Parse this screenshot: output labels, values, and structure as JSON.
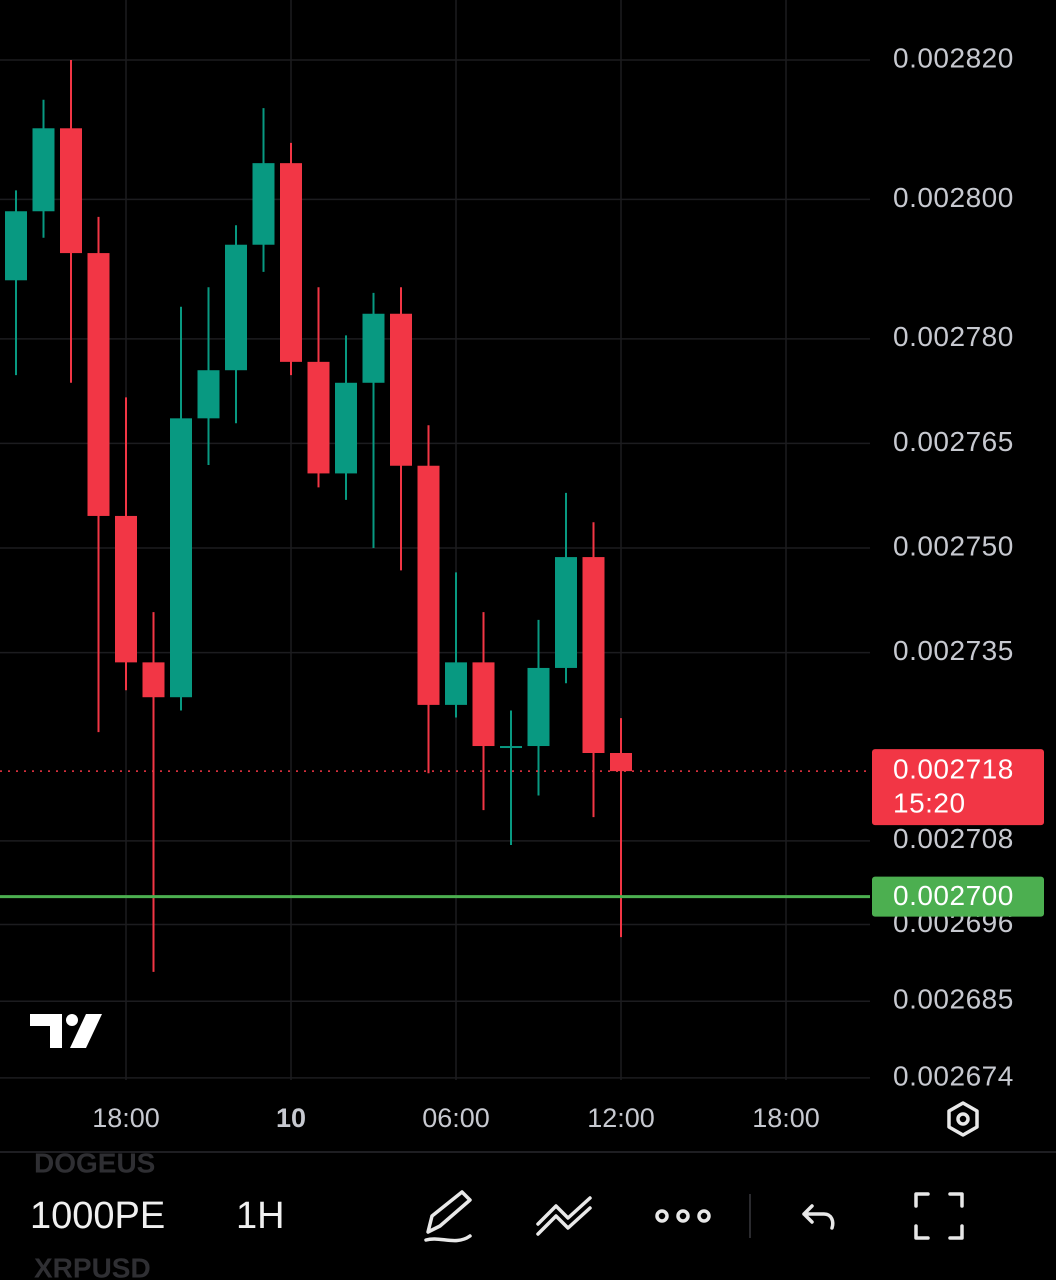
{
  "chart_data": {
    "type": "candlestick",
    "categories": [
      null,
      null,
      null,
      null,
      "18:00",
      null,
      null,
      null,
      null,
      null,
      "10",
      null,
      null,
      null,
      null,
      null,
      "06:00",
      null,
      null,
      null,
      null,
      null,
      "12:00",
      null,
      null,
      null,
      null,
      null,
      "18:00",
      null,
      null,
      null
    ],
    "open": [
      0.0027884,
      0.0027983,
      0.0028102,
      0.0027923,
      0.0027546,
      0.0027336,
      0.0027286,
      0.0027686,
      0.0027755,
      0.0027935,
      0.0028052,
      0.0027767,
      0.0027607,
      0.0027737,
      0.0027836,
      0.0027618,
      0.0027275,
      0.0027336,
      0.0027216,
      0.0027216,
      0.0027328,
      0.0027487,
      0.0027206,
      null,
      null,
      null,
      null,
      null,
      null,
      null,
      null,
      null
    ],
    "high": [
      0.0028013,
      0.0028143,
      0.00282,
      0.0027975,
      0.0027716,
      0.0027408,
      0.0027846,
      0.0027874,
      0.0027963,
      0.0028131,
      0.0028081,
      0.0027874,
      0.0027805,
      0.0027866,
      0.0027874,
      0.0027676,
      0.0027465,
      0.0027408,
      0.0027267,
      0.0027397,
      0.0027579,
      0.0027537,
      0.0027256,
      null,
      null,
      null,
      null,
      null,
      null,
      null,
      null,
      null
    ],
    "low": [
      0.0027748,
      0.0027945,
      0.0027737,
      0.0027236,
      0.0027296,
      0.0026892,
      0.0027267,
      0.0027619,
      0.0027679,
      0.0027896,
      0.0027748,
      0.0027587,
      0.0027569,
      0.00275,
      0.0027468,
      0.0027177,
      0.0027257,
      0.0027124,
      0.0027074,
      0.0027145,
      0.0027306,
      0.0027114,
      0.0026942,
      null,
      null,
      null,
      null,
      null,
      null,
      null,
      null,
      null
    ],
    "close": [
      0.0027983,
      0.0028102,
      0.0027923,
      0.0027546,
      0.0027336,
      0.0027286,
      0.0027686,
      0.0027755,
      0.0027935,
      0.0028052,
      0.0027767,
      0.0027607,
      0.0027737,
      0.0027836,
      0.0027618,
      0.0027275,
      0.0027336,
      0.0027216,
      0.0027216,
      0.0027328,
      0.0027487,
      0.0027206,
      0.002718,
      null,
      null,
      null,
      null,
      null,
      null,
      null,
      null,
      null
    ],
    "up_color": "#089981",
    "down_color": "#f23645",
    "ylim": [
      0.0026737,
      0.0028286
    ],
    "yticks": [
      {
        "value": 0.00282,
        "label": "0.002820"
      },
      {
        "value": 0.0028,
        "label": "0.002800"
      },
      {
        "value": 0.00278,
        "label": "0.002780"
      },
      {
        "value": 0.002765,
        "label": "0.002765"
      },
      {
        "value": 0.00275,
        "label": "0.002750"
      },
      {
        "value": 0.002735,
        "label": "0.002735"
      },
      {
        "value": 0.002708,
        "label": "0.002708"
      },
      {
        "value": 0.002696,
        "label": "0.002696"
      },
      {
        "value": 0.002685,
        "label": "0.002685"
      },
      {
        "value": 0.002674,
        "label": "0.002674"
      }
    ],
    "grid": true,
    "price_line": {
      "value": 0.002718,
      "label": "0.002718",
      "countdown": "15:20",
      "color": "#f23645"
    },
    "horizontal_line": {
      "value": 0.0027,
      "label": "0.002700",
      "color": "#4caf50"
    }
  },
  "toolbar": {
    "symbols": [
      "DOGEUS",
      "1000PE",
      "XRPUSD"
    ],
    "interval": "1H"
  }
}
